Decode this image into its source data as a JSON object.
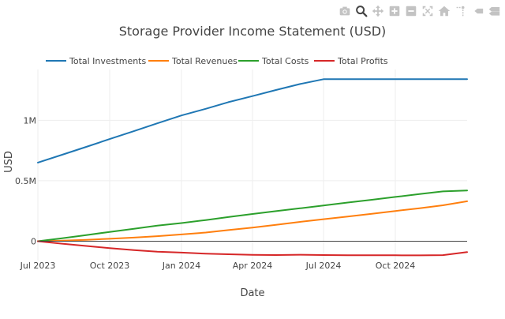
{
  "modebar": {
    "buttons": [
      {
        "name": "camera-icon",
        "icon": "camera",
        "active": false
      },
      {
        "name": "zoom-icon",
        "icon": "zoom",
        "active": true
      },
      {
        "name": "pan-icon",
        "icon": "pan",
        "active": false
      },
      {
        "name": "zoom-in-icon",
        "icon": "plus-box",
        "active": false
      },
      {
        "name": "zoom-out-icon",
        "icon": "minus-box",
        "active": false
      },
      {
        "name": "autoscale-icon",
        "icon": "autoscale",
        "active": false
      },
      {
        "name": "reset-axes-icon",
        "icon": "home",
        "active": false
      },
      {
        "name": "spike-lines-icon",
        "icon": "spikes",
        "active": false
      },
      {
        "name": "hover-closest-icon",
        "icon": "tag",
        "active": false
      },
      {
        "name": "hover-compare-icon",
        "icon": "tags",
        "active": false
      }
    ]
  },
  "chart_data": {
    "type": "line",
    "title": "Storage Provider Income Statement (USD)",
    "xlabel": "Date",
    "ylabel": "USD",
    "x_ticks": [
      "Jul 2023",
      "Oct 2023",
      "Jan 2024",
      "Apr 2024",
      "Jul 2024",
      "Oct 2024"
    ],
    "y_ticks": [
      {
        "value": 0,
        "label": "0"
      },
      {
        "value": 500000,
        "label": "0.5M"
      },
      {
        "value": 1000000,
        "label": "1M"
      }
    ],
    "xlim": [
      "2023-07-01",
      "2025-01-01"
    ],
    "ylim": [
      -160000,
      1420000
    ],
    "grid": true,
    "legend_position": "top",
    "x": [
      "2023-07-01",
      "2023-08-01",
      "2023-09-01",
      "2023-10-01",
      "2023-11-01",
      "2023-12-01",
      "2024-01-01",
      "2024-02-01",
      "2024-03-01",
      "2024-04-01",
      "2024-05-01",
      "2024-06-01",
      "2024-07-01",
      "2024-08-01",
      "2024-09-01",
      "2024-10-01",
      "2024-11-01",
      "2024-12-01",
      "2025-01-01"
    ],
    "series": [
      {
        "name": "Total Investments",
        "color": "#1f77b4",
        "values": [
          650000,
          715000,
          780000,
          845000,
          910000,
          975000,
          1040000,
          1095000,
          1150000,
          1200000,
          1250000,
          1300000,
          1340000,
          1340000,
          1340000,
          1340000,
          1340000,
          1340000,
          1340000
        ]
      },
      {
        "name": "Total Revenues",
        "color": "#ff7f0e",
        "values": [
          0,
          5000,
          12000,
          20000,
          30000,
          42000,
          56000,
          72000,
          92000,
          112000,
          135000,
          160000,
          182000,
          204000,
          227000,
          250000,
          273000,
          297000,
          330000
        ]
      },
      {
        "name": "Total Costs",
        "color": "#2ca02c",
        "values": [
          0,
          25000,
          51000,
          77000,
          103000,
          129000,
          150000,
          175000,
          200000,
          225000,
          249000,
          272000,
          296000,
          320000,
          343000,
          366000,
          390000,
          412000,
          420000
        ]
      },
      {
        "name": "Total Profits",
        "color": "#d62728",
        "values": [
          0,
          -20000,
          -39000,
          -57000,
          -73000,
          -87000,
          -94000,
          -103000,
          -108000,
          -113000,
          -114000,
          -112000,
          -114000,
          -116000,
          -116000,
          -116000,
          -117000,
          -115000,
          -90000
        ]
      }
    ]
  }
}
